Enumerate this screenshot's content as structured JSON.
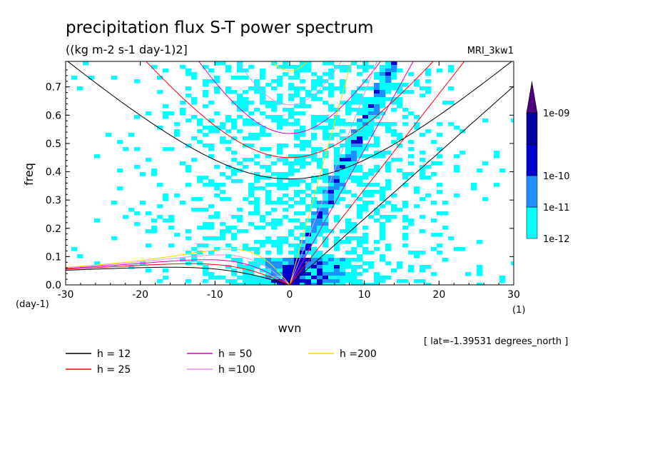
{
  "chart_data": {
    "type": "heatmap",
    "title": "precipitation flux S-T power spectrum",
    "subtitle": "((kg m-2 s-1 day-1)2]",
    "model_label": "MRI_3kw1",
    "xlabel": "wvn",
    "ylabel": "freq",
    "x_unit": "(1)",
    "y_unit": "(day-1)",
    "xlim": [
      -30,
      30
    ],
    "ylim": [
      0,
      0.79
    ],
    "xticks": [
      "-30",
      "-20",
      "-10",
      "0",
      "10",
      "20",
      "30"
    ],
    "yticks": [
      "0.0",
      "0.1",
      "0.2",
      "0.3",
      "0.4",
      "0.5",
      "0.6",
      "0.7"
    ],
    "lat_note": "[ lat=-1.39531 degrees_north ]",
    "colorbar": {
      "labels": [
        "1e-12",
        "1e-11",
        "1e-10",
        "1e-09"
      ],
      "colors": [
        "#00ffff",
        "#1e90ff",
        "#0000cd",
        "#00009c",
        "#4b0082"
      ]
    },
    "dispersion_curves": [
      {
        "label": "h = 12",
        "color": "#000000"
      },
      {
        "label": "h = 25",
        "color": "#ff0000"
      },
      {
        "label": "h = 50",
        "color": "#e000c0"
      },
      {
        "label": "h =100",
        "color": "#ee90ee"
      },
      {
        "label": "h =200",
        "color": "#ffd700"
      }
    ],
    "grid": false
  }
}
